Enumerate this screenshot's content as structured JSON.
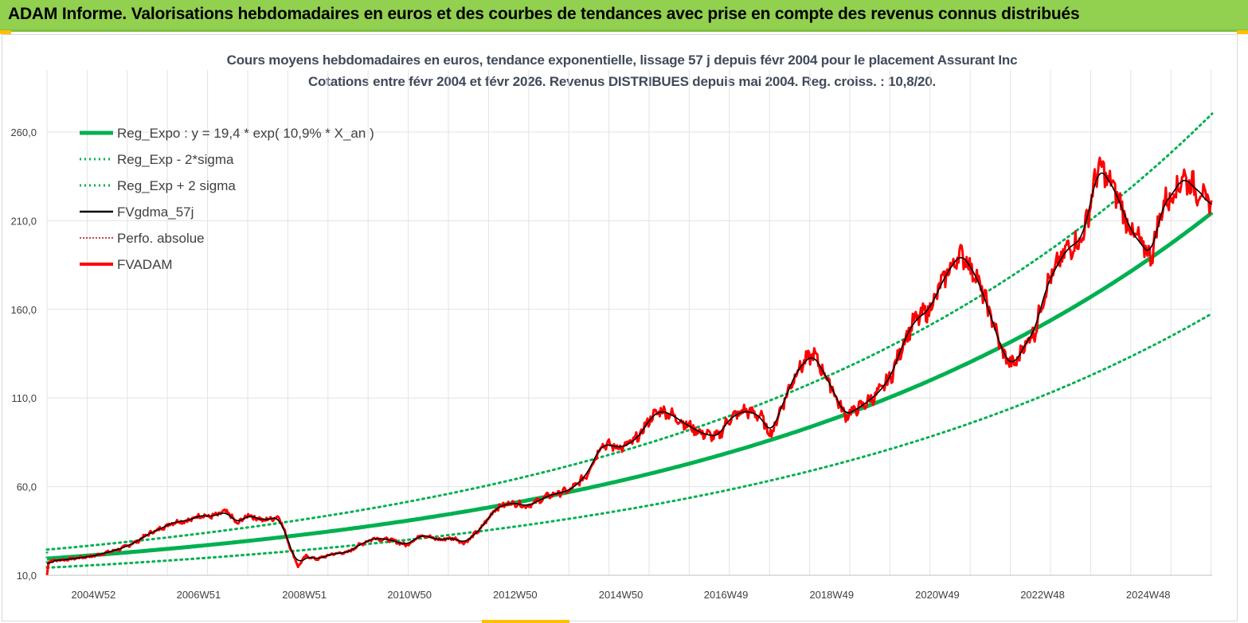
{
  "header": {
    "title": "ADAM Informe. Valorisations hebdomadaires en euros et des courbes de tendances avec prise en compte des revenus connus distribués"
  },
  "chart_data": {
    "type": "line",
    "title": "Cours moyens hebdomadaires en euros, tendance exponentielle, lissage 57 j depuis févr 2004 pour le placement Assurant Inc",
    "subtitle": "Cotations entre févr 2004 et févr 2026. Revenus DISTRIBUES depuis mai 2004. Reg. croiss. : 10,8/20.",
    "xlabel": "",
    "ylabel": "",
    "ylim": [
      10,
      295
    ],
    "xlim": [
      2004.1,
      2026.15
    ],
    "y_ticks": [
      10,
      60,
      110,
      160,
      210,
      260
    ],
    "y_tick_labels": [
      "10,0",
      "60,0",
      "110,0",
      "160,0",
      "210,0",
      "260,0"
    ],
    "x_tick_labels": [
      "2004W52",
      "2006W51",
      "2008W51",
      "2010W50",
      "2012W50",
      "2014W50",
      "2016W49",
      "2018W49",
      "2020W49",
      "2022W48",
      "2024W48"
    ],
    "x_tick_positions": [
      2004.98,
      2006.97,
      2008.97,
      2010.96,
      2012.96,
      2014.96,
      2016.95,
      2018.95,
      2020.95,
      2022.94,
      2024.94
    ],
    "grid": true,
    "legend_position": "top-left",
    "regression": {
      "a": 19.4,
      "b": 0.109,
      "x0": 2004.1,
      "lower_factor": 0.735,
      "upper_factor": 1.26
    },
    "series": [
      {
        "name": "Reg_Expo : y = 19,4 * exp( 10,9% *  X_an )",
        "color": "#00b050",
        "style": "solid-thick"
      },
      {
        "name": "Reg_Exp - 2*sigma",
        "color": "#00b050",
        "style": "dotted"
      },
      {
        "name": "Reg_Exp + 2 sigma",
        "color": "#00b050",
        "style": "dotted"
      },
      {
        "name": "FVgdma_57j",
        "color": "#000000",
        "style": "solid"
      },
      {
        "name": "Perfo. absolue",
        "color": "#c00000",
        "style": "dotted"
      },
      {
        "name": "FVADAM",
        "color": "#ff0000",
        "style": "solid-thick",
        "x": [
          2004.1,
          2004.13,
          2004.5,
          2005.0,
          2005.5,
          2005.8,
          2006.0,
          2006.3,
          2006.5,
          2006.8,
          2007.0,
          2007.2,
          2007.5,
          2007.7,
          2007.9,
          2008.2,
          2008.5,
          2008.7,
          2008.85,
          2009.0,
          2009.2,
          2009.5,
          2009.8,
          2010.0,
          2010.3,
          2010.6,
          2010.9,
          2011.2,
          2011.5,
          2011.8,
          2012.0,
          2012.3,
          2012.6,
          2012.9,
          2013.2,
          2013.6,
          2014.0,
          2014.3,
          2014.6,
          2015.0,
          2015.3,
          2015.5,
          2015.7,
          2015.9,
          2016.2,
          2016.5,
          2016.8,
          2017.0,
          2017.3,
          2017.6,
          2017.8,
          2018.0,
          2018.3,
          2018.6,
          2018.9,
          2019.2,
          2019.5,
          2019.8,
          2019.95,
          2020.1,
          2020.3,
          2020.5,
          2020.8,
          2021.1,
          2021.4,
          2021.7,
          2022.0,
          2022.2,
          2022.4,
          2022.6,
          2022.8,
          2023.0,
          2023.2,
          2023.4,
          2023.7,
          2024.0,
          2024.3,
          2024.6,
          2024.85,
          2025.0,
          2025.2,
          2025.4,
          2025.6,
          2025.8,
          2026.0,
          2026.15
        ],
        "values": [
          10,
          18,
          19,
          21,
          25,
          29,
          33,
          37,
          40,
          41,
          44,
          43,
          46,
          39,
          44,
          41,
          43,
          26,
          15,
          21,
          19,
          22,
          23,
          27,
          31,
          30,
          27,
          33,
          30,
          31,
          28,
          36,
          48,
          51,
          49,
          55,
          58,
          66,
          84,
          82,
          88,
          98,
          103,
          101,
          95,
          90,
          88,
          98,
          103,
          100,
          89,
          105,
          126,
          135,
          119,
          100,
          105,
          112,
          117,
          124,
          141,
          153,
          160,
          179,
          192,
          178,
          153,
          134,
          128,
          140,
          148,
          172,
          184,
          194,
          200,
          241,
          228,
          205,
          195,
          190,
          218,
          225,
          235,
          229,
          224,
          215
        ]
      }
    ]
  }
}
